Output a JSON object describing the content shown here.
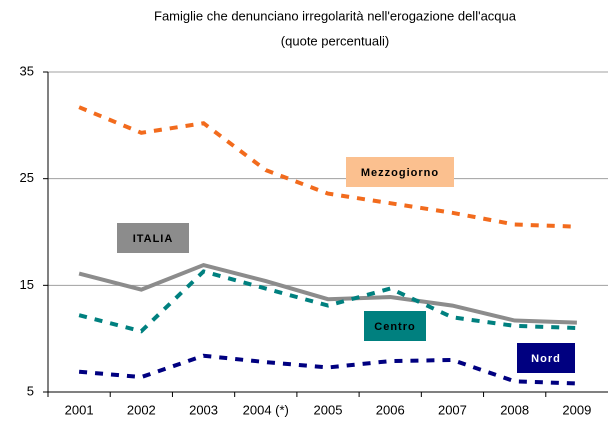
{
  "chart_data": {
    "type": "line",
    "title": "Famiglie che denunciano irregolarità nell'erogazione dell'acqua",
    "subtitle": "(quote percentuali)",
    "categories": [
      "2001",
      "2002",
      "2003",
      "2004 (*)",
      "2005",
      "2006",
      "2007",
      "2008",
      "2009"
    ],
    "ylim": [
      5,
      35
    ],
    "yticks": [
      5,
      15,
      25,
      35
    ],
    "grid": true,
    "series": [
      {
        "name": "Mezzogiorno",
        "color": "#f26b1d",
        "dashed": true,
        "label_bg": "#fbc08f",
        "label_color": "#000000",
        "values": [
          31.7,
          29.3,
          30.2,
          25.8,
          23.6,
          22.7,
          21.8,
          20.7,
          20.5
        ]
      },
      {
        "name": "ITALIA",
        "color": "#8c8c8c",
        "dashed": false,
        "label_bg": "#8c8c8c",
        "label_color": "#000000",
        "values": [
          16.1,
          14.6,
          16.9,
          15.4,
          13.7,
          13.9,
          13.1,
          11.7,
          11.5
        ]
      },
      {
        "name": "Centro",
        "color": "#00807f",
        "dashed": true,
        "label_bg": "#00807f",
        "label_color": "#000000",
        "values": [
          12.2,
          10.7,
          16.3,
          14.7,
          13.1,
          14.7,
          12.0,
          11.2,
          11.0
        ]
      },
      {
        "name": "Nord",
        "color": "#000080",
        "dashed": true,
        "label_bg": "#000080",
        "label_color": "#ffffff",
        "values": [
          6.9,
          6.4,
          8.4,
          7.8,
          7.3,
          7.9,
          8.0,
          6.0,
          5.8
        ]
      }
    ]
  }
}
